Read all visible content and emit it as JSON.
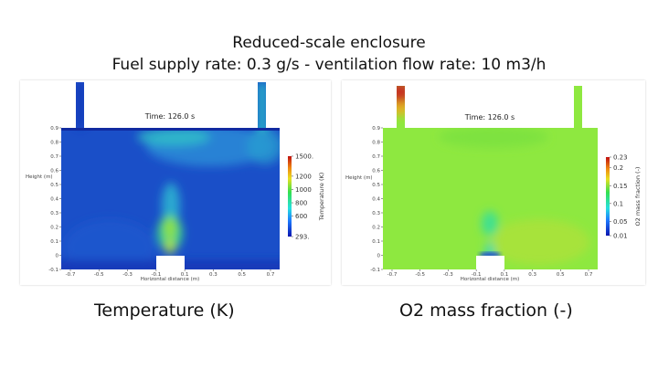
{
  "header": {
    "title": "Reduced-scale enclosure",
    "subtitle": "Fuel supply rate: 0.3 g/s -  ventilation flow rate: 10 m3/h"
  },
  "chart_data": [
    {
      "type": "heatmap",
      "time_label": "Time: 126.0 s",
      "xlabel": "Horizontal distance (m)",
      "ylabel": "Height (m)",
      "xticks": [
        "-0.7",
        "-0.5",
        "-0.3",
        "-0.1",
        "0.1",
        "0.3",
        "0.5",
        "0.7"
      ],
      "yticks": [
        "-0.1",
        "0",
        "0.1",
        "0.2",
        "0.3",
        "0.4",
        "0.5",
        "0.6",
        "0.7",
        "0.8",
        "0.9"
      ],
      "colorbar": {
        "title": "Temperature (K)",
        "range": [
          293,
          1500
        ],
        "ticks": [
          "1500.",
          "1200",
          "1000",
          "800",
          "600",
          "293."
        ]
      },
      "caption": "Temperature (K)"
    },
    {
      "type": "heatmap",
      "time_label": "Time: 126.0 s",
      "xlabel": "Horizontal distance (m)",
      "ylabel": "Height (m)",
      "xticks": [
        "-0.7",
        "-0.5",
        "-0.3",
        "-0.1",
        "0.1",
        "0.3",
        "0.5",
        "0.7"
      ],
      "yticks": [
        "-0.1",
        "0",
        "0.1",
        "0.2",
        "0.3",
        "0.4",
        "0.5",
        "0.6",
        "0.7",
        "0.8",
        "0.9"
      ],
      "colorbar": {
        "title": "O2 mass fraction (-)",
        "range": [
          0.01,
          0.23
        ],
        "ticks": [
          "0.23",
          "0.2",
          "0.15",
          "0.1",
          "0.05",
          "0.01"
        ]
      },
      "caption": "O2 mass fraction (-)"
    }
  ]
}
